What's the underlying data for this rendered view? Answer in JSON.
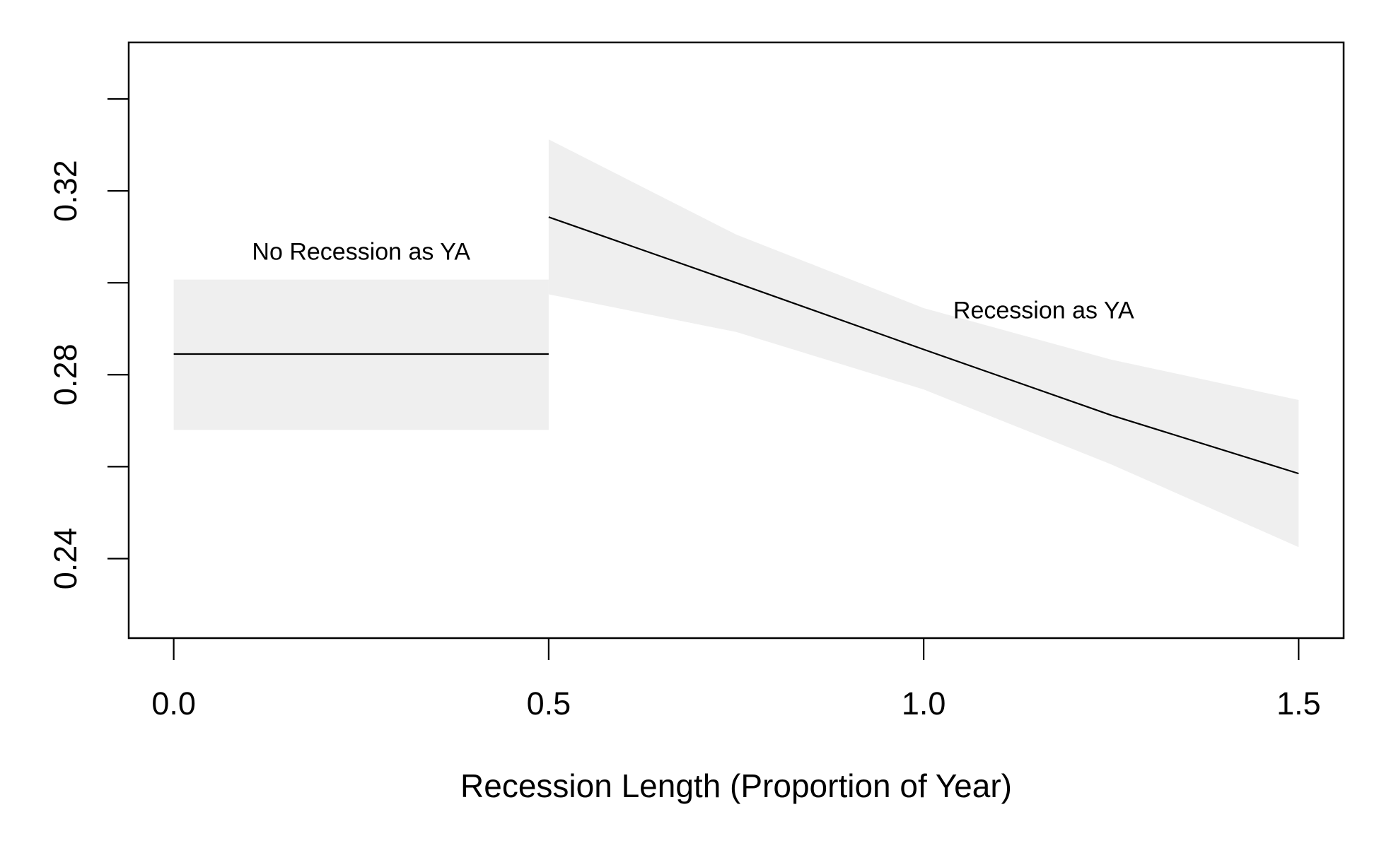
{
  "chart_data": {
    "type": "line",
    "title": "",
    "xlabel": "Recession Length (Proportion of Year)",
    "ylabel": "",
    "xlim": [
      -0.06,
      1.56
    ],
    "ylim": [
      0.2227,
      0.3523
    ],
    "grid": false,
    "x_ticks": [
      0.0,
      0.5,
      1.0,
      1.5
    ],
    "x_tick_labels": [
      "0.0",
      "0.5",
      "1.0",
      "1.5"
    ],
    "y_ticks": [
      0.24,
      0.26,
      0.28,
      0.3,
      0.32,
      0.34
    ],
    "y_tick_labels": [
      "0.24",
      "",
      "0.28",
      "",
      "0.32",
      ""
    ],
    "colors": {
      "line": "#000000",
      "band": "#efefef",
      "frame": "#000000"
    },
    "series": [
      {
        "x": [
          0.0,
          0.5
        ],
        "y": [
          0.2845,
          0.2845
        ],
        "lower": [
          0.268,
          0.268
        ],
        "upper": [
          0.3007,
          0.3007
        ]
      },
      {
        "x": [
          0.5,
          0.75,
          1.0,
          1.25,
          1.5
        ],
        "y": [
          0.3143,
          0.3,
          0.2855,
          0.2712,
          0.2585
        ],
        "lower": [
          0.2975,
          0.2893,
          0.2768,
          0.2605,
          0.2425
        ],
        "upper": [
          0.3312,
          0.3105,
          0.2945,
          0.2833,
          0.2745
        ]
      }
    ],
    "annotations": [
      {
        "text": "No Recession as YA",
        "x": 0.25,
        "y": 0.305
      },
      {
        "text": "Recession as YA",
        "x": 1.16,
        "y": 0.2923
      }
    ]
  }
}
